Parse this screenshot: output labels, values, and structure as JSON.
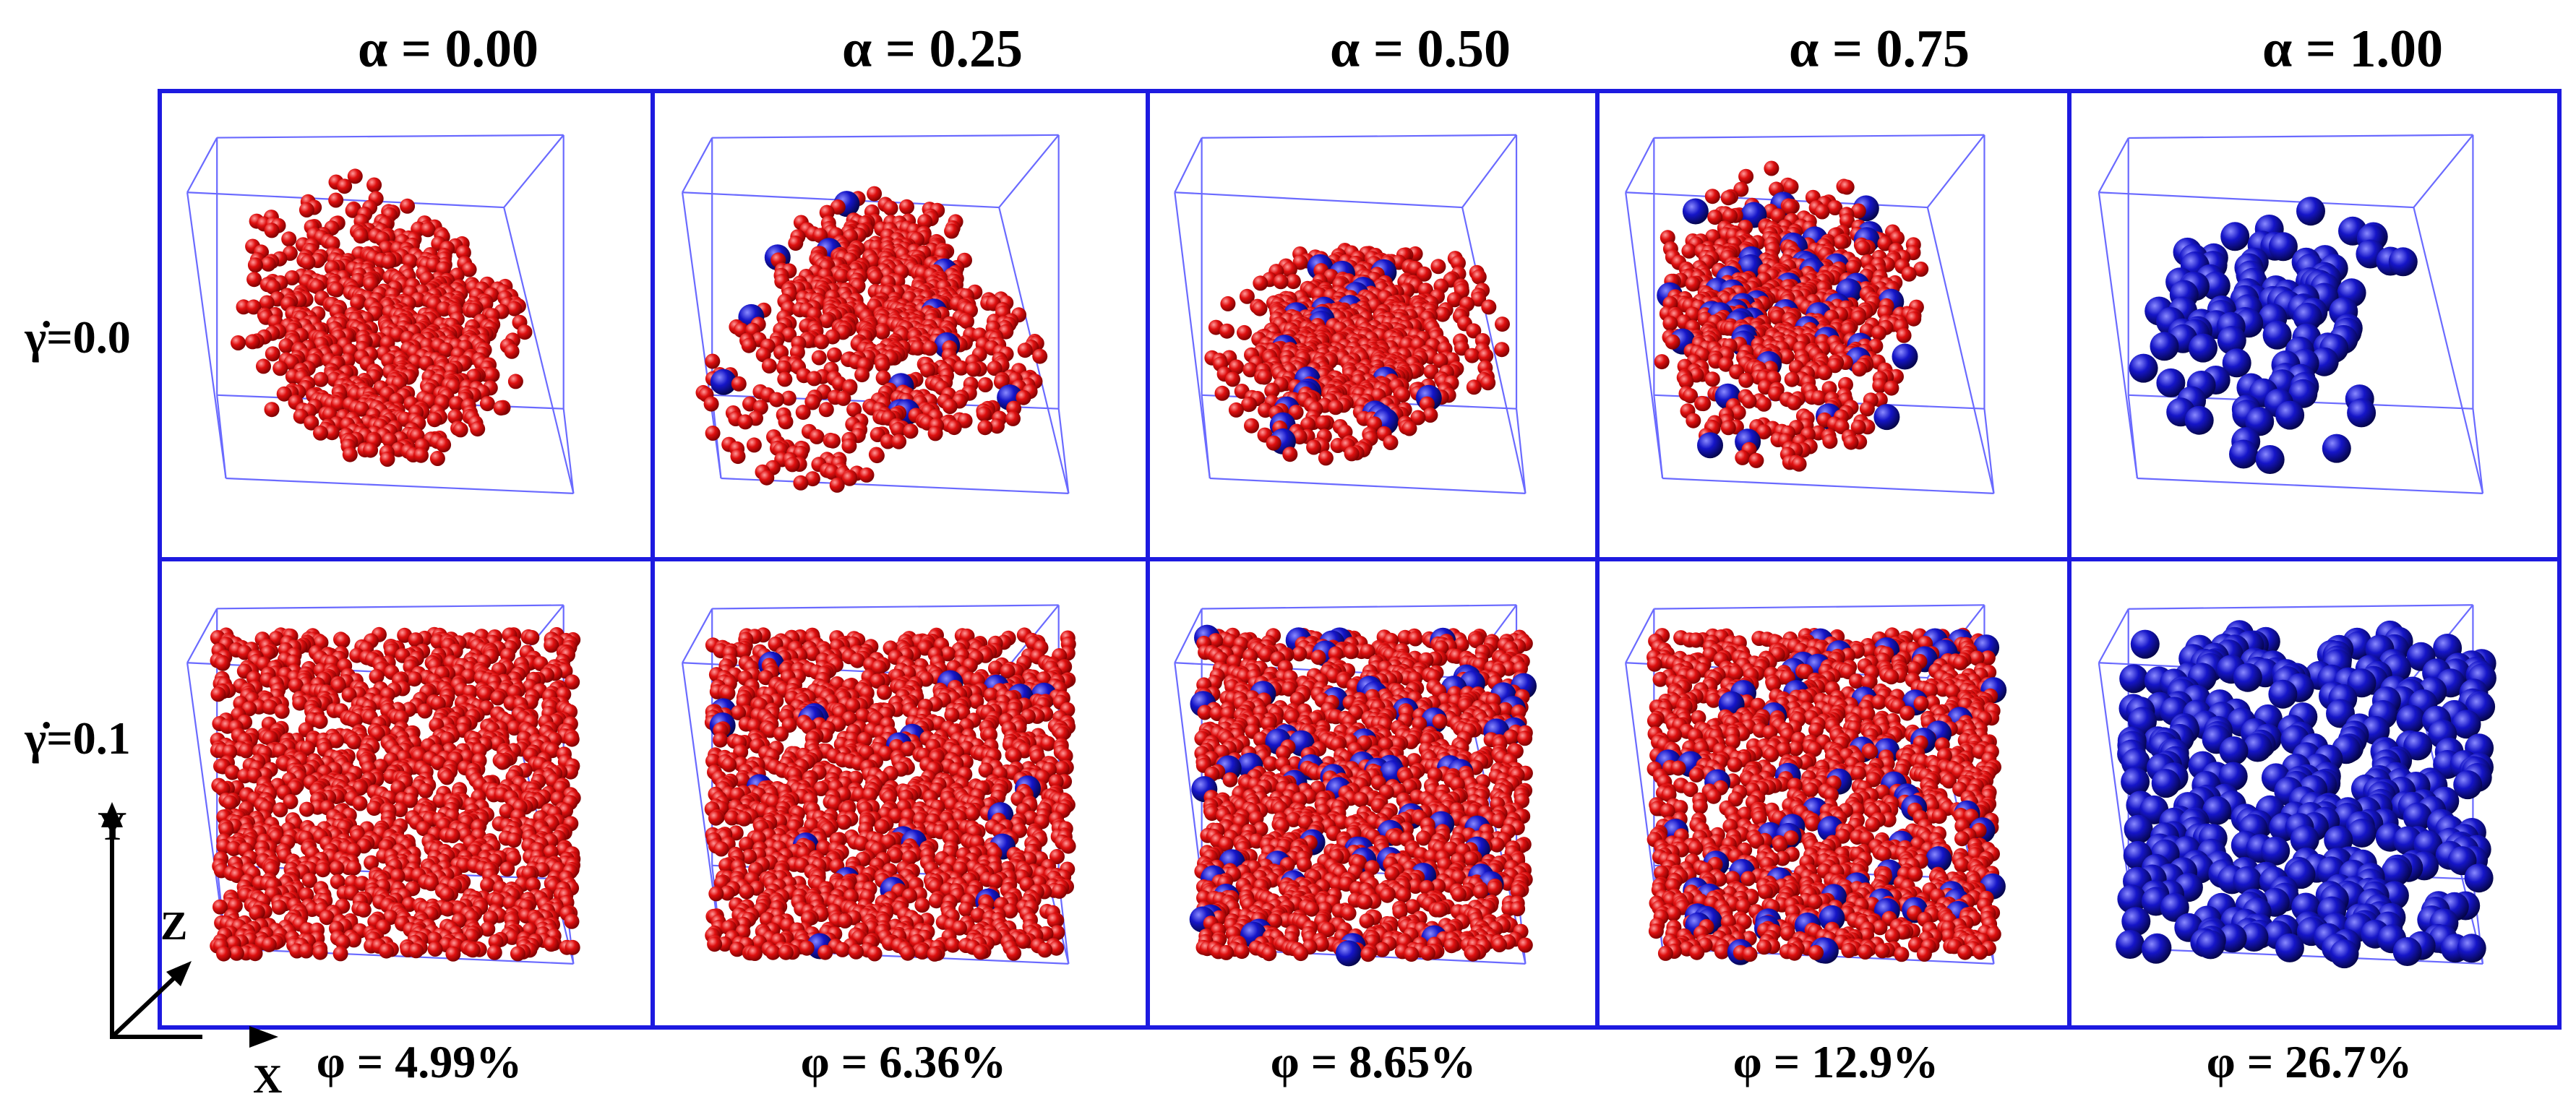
{
  "columns": [
    {
      "label": "α = 0.00",
      "phi": "φ = 4.99%",
      "blue_fraction": 0.0
    },
    {
      "label": "α = 0.25",
      "phi": "φ = 6.36%",
      "blue_fraction": 0.25
    },
    {
      "label": "α = 0.50",
      "phi": "φ = 8.65%",
      "blue_fraction": 0.5
    },
    {
      "label": "α = 0.75",
      "phi": "φ = 12.9%",
      "blue_fraction": 0.75
    },
    {
      "label": "α = 1.00",
      "phi": "φ = 26.7%",
      "blue_fraction": 1.0
    }
  ],
  "rows": [
    {
      "label": "γ̇=0.0",
      "state": "sparse"
    },
    {
      "label": "γ̇=0.1",
      "state": "dense"
    }
  ],
  "axes": {
    "x": "X",
    "y": "Y",
    "z": "Z"
  },
  "colors": {
    "frame": "#1d1ae0",
    "box_edges": "#6a6aff",
    "small_particle": "#e01010",
    "large_particle": "#1515c8",
    "axis_arrows": "#000000"
  }
}
